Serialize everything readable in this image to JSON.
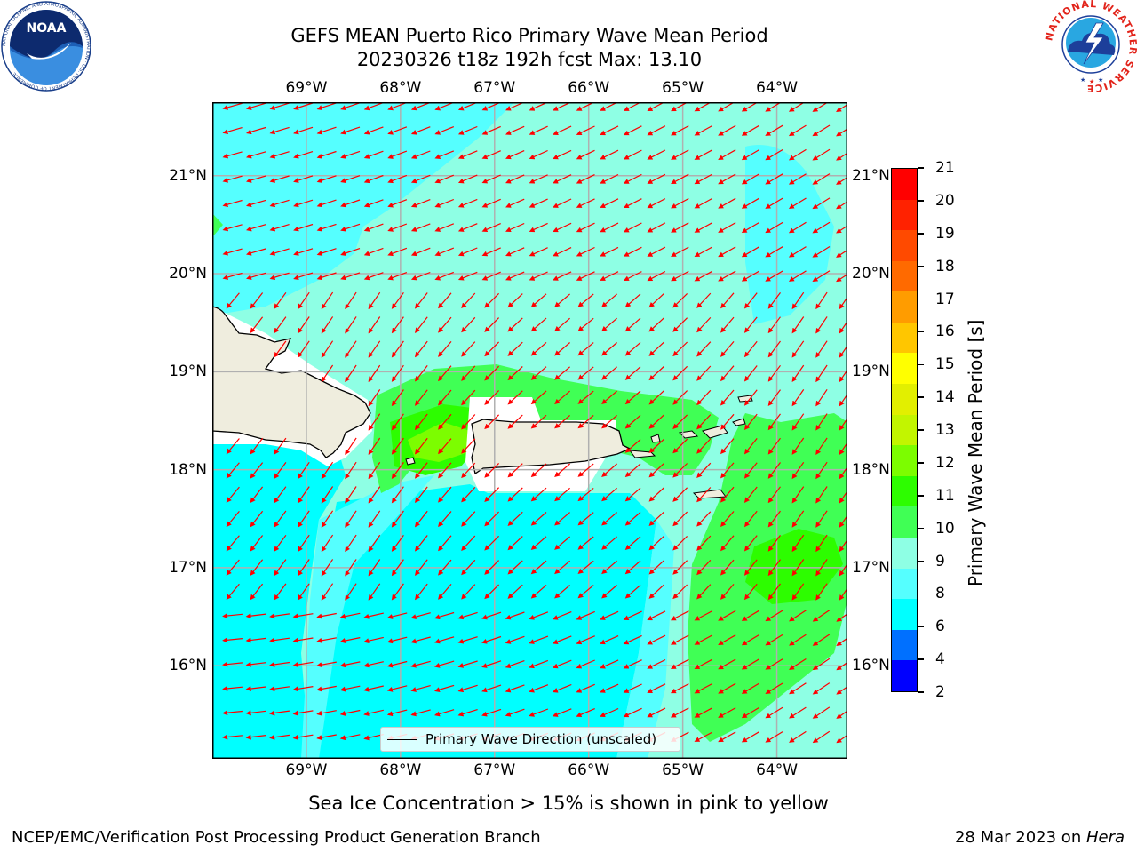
{
  "title": {
    "line1": "GEFS MEAN Puerto Rico Primary Wave Mean Period",
    "line2": "20230326 t18z 192h fcst   Max: 13.10"
  },
  "map": {
    "lon_labels": [
      "69°W",
      "68°W",
      "67°W",
      "66°W",
      "65°W",
      "64°W"
    ],
    "lon_values": [
      -69,
      -68,
      -67,
      -66,
      -65,
      -64
    ],
    "lat_labels": [
      "21°N",
      "20°N",
      "19°N",
      "18°N",
      "17°N",
      "16°N"
    ],
    "lat_values": [
      21,
      20,
      19,
      18,
      17,
      16
    ],
    "extent": {
      "lon": [
        -70,
        -63.25
      ],
      "lat": [
        15.05,
        21.75
      ]
    },
    "legend_label": "Primary Wave Direction (unscaled)",
    "arrow_color": "#ff0000",
    "land_color": "#efedde"
  },
  "colorbar": {
    "label": "Primary Wave Mean Period [s]",
    "ticks": [
      "21",
      "20",
      "19",
      "18",
      "17",
      "16",
      "15",
      "14",
      "13",
      "12",
      "11",
      "10",
      "9",
      "8",
      "6",
      "4",
      "2"
    ],
    "colors": [
      "#0000ff",
      "#0070ff",
      "#00ffff",
      "#55ffff",
      "#8effe4",
      "#40ff55",
      "#2dfd00",
      "#7cfd00",
      "#c2f500",
      "#e2ef00",
      "#ffff00",
      "#ffc600",
      "#ff9c00",
      "#ff6a00",
      "#ff4a00",
      "#ff2200",
      "#ff0000"
    ]
  },
  "caption": "Sea Ice Concentration > 15% is shown in pink to yellow",
  "footer": {
    "left": "NCEP/EMC/Verification Post Processing Product Generation Branch",
    "right_date": "28 Mar 2023 on ",
    "right_host": "Hera"
  },
  "logos": {
    "noaa": "NOAA",
    "nws_ring": "NATIONAL WEATHER SERVICE",
    "noaa_ring": "NATIONAL OCEANIC AND ATMOSPHERIC ADMINISTRATION · U.S. DEPARTMENT OF COMMERCE"
  }
}
